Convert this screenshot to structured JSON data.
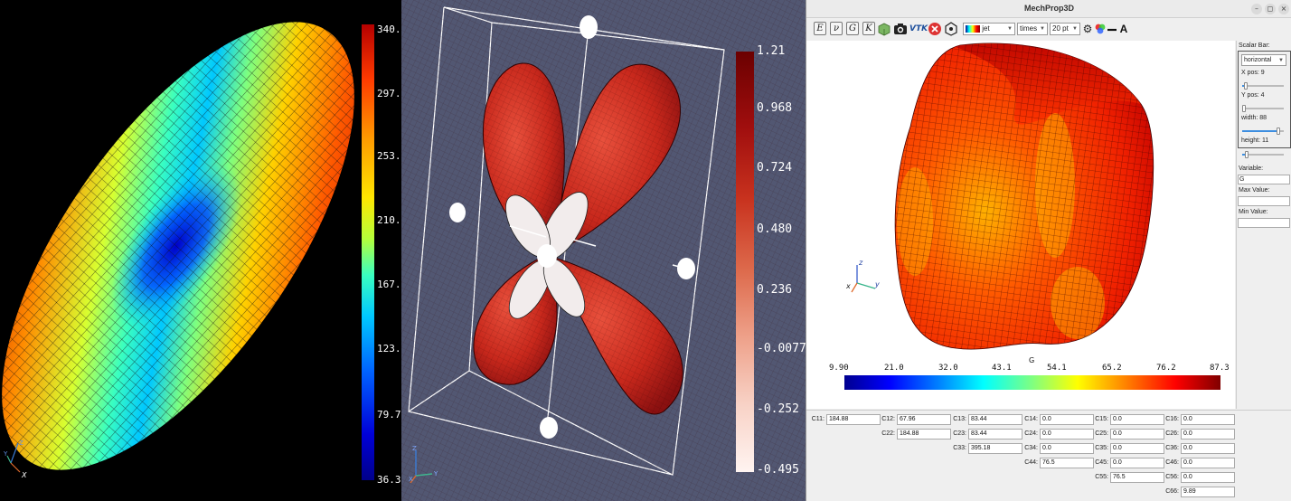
{
  "panel1": {
    "colorbar_ticks": [
      "340.",
      "297.",
      "253.",
      "210.",
      "167.",
      "123.",
      "79.7",
      "36.3"
    ],
    "axes": {
      "z": "Z",
      "y": "Y",
      "x": "X"
    }
  },
  "panel2": {
    "colorbar_ticks": [
      "1.21",
      "0.968",
      "0.724",
      "0.480",
      "0.236",
      "-0.00770",
      "-0.252",
      "-0.495"
    ],
    "axes": {
      "z": "Z",
      "y": "Y",
      "x": "X"
    }
  },
  "app": {
    "title": "MechProp3D",
    "window_buttons": {
      "minimize": "–",
      "maximize": "◻",
      "close": "×"
    },
    "toolbar": {
      "buttons": [
        "E",
        "ν",
        "G",
        "K"
      ],
      "colormap": "jet",
      "font": "times",
      "font_size": "20 pt",
      "text_button": "A",
      "vtk_label": "VTK"
    },
    "viewport": {
      "colorbar_title": "G",
      "colorbar_ticks": [
        "9.90",
        "21.0",
        "32.0",
        "43.1",
        "54.1",
        "65.2",
        "76.2",
        "87.3"
      ],
      "axes": {
        "z": "z",
        "x": "x",
        "y": "y"
      }
    },
    "sidepanel": {
      "scalar_bar_label": "Scalar Bar:",
      "orientation": "horizontal",
      "x_pos": "X pos: 9",
      "y_pos": "Y pos: 4",
      "width": "width: 88",
      "height": "height: 11",
      "sliders": {
        "x_pos": 0.09,
        "y_pos": 0.04,
        "width": 0.88,
        "height": 0.11
      },
      "variable_label": "Variable:",
      "variable_value": "G",
      "max_label": "Max Value:",
      "max_value": "",
      "min_label": "Min Value:",
      "min_value": ""
    },
    "constants": [
      [
        {
          "label": "C11:",
          "value": "184.88"
        },
        {
          "label": "C12:",
          "value": "67.96"
        },
        {
          "label": "C13:",
          "value": "83.44"
        },
        {
          "label": "C14:",
          "value": "0.0"
        },
        {
          "label": "C15:",
          "value": "0.0"
        },
        {
          "label": "C16:",
          "value": "0.0"
        }
      ],
      [
        null,
        {
          "label": "C22:",
          "value": "184.88"
        },
        {
          "label": "C23:",
          "value": "83.44"
        },
        {
          "label": "C24:",
          "value": "0.0"
        },
        {
          "label": "C25:",
          "value": "0.0"
        },
        {
          "label": "C26:",
          "value": "0.0"
        }
      ],
      [
        null,
        null,
        {
          "label": "C33:",
          "value": "395.18"
        },
        {
          "label": "C34:",
          "value": "0.0"
        },
        {
          "label": "C35:",
          "value": "0.0"
        },
        {
          "label": "C36:",
          "value": "0.0"
        }
      ],
      [
        null,
        null,
        null,
        {
          "label": "C44:",
          "value": "76.5"
        },
        {
          "label": "C45:",
          "value": "0.0"
        },
        {
          "label": "C46:",
          "value": "0.0"
        }
      ],
      [
        null,
        null,
        null,
        null,
        {
          "label": "C55:",
          "value": "76.5"
        },
        {
          "label": "C56:",
          "value": "0.0"
        }
      ],
      [
        null,
        null,
        null,
        null,
        null,
        {
          "label": "C66:",
          "value": "9.89"
        }
      ]
    ]
  }
}
